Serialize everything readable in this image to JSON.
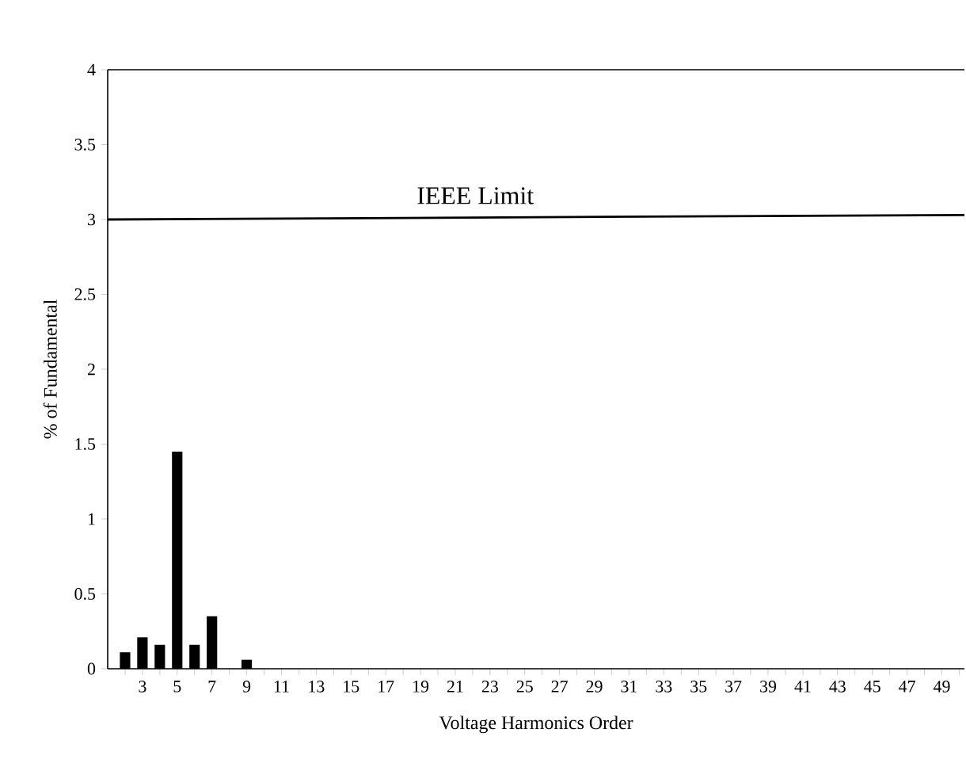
{
  "chart_data": {
    "type": "bar",
    "xlabel": "Voltage Harmonics Order",
    "ylabel": "%  of  Fundamental",
    "xlim": [
      1,
      50.3
    ],
    "ylim": [
      0,
      4
    ],
    "xticks": [
      {
        "value": 2,
        "label": null
      },
      3,
      {
        "value": 4,
        "label": null
      },
      5,
      {
        "value": 6,
        "label": null
      },
      7,
      {
        "value": 8,
        "label": null
      },
      9,
      {
        "value": 10,
        "label": null
      },
      11,
      {
        "value": 12,
        "label": null
      },
      13,
      {
        "value": 14,
        "label": null
      },
      15,
      {
        "value": 16,
        "label": null
      },
      17,
      {
        "value": 18,
        "label": null
      },
      19,
      {
        "value": 20,
        "label": null
      },
      21,
      {
        "value": 22,
        "label": null
      },
      23,
      {
        "value": 24,
        "label": null
      },
      25,
      {
        "value": 26,
        "label": null
      },
      27,
      {
        "value": 28,
        "label": null
      },
      29,
      {
        "value": 30,
        "label": null
      },
      31,
      {
        "value": 32,
        "label": null
      },
      33,
      {
        "value": 34,
        "label": null
      },
      35,
      {
        "value": 36,
        "label": null
      },
      37,
      {
        "value": 38,
        "label": null
      },
      39,
      {
        "value": 40,
        "label": null
      },
      41,
      {
        "value": 42,
        "label": null
      },
      43,
      {
        "value": 44,
        "label": null
      },
      45,
      {
        "value": 46,
        "label": null
      },
      47,
      {
        "value": 48,
        "label": null
      },
      49,
      {
        "value": 50,
        "label": null
      }
    ],
    "yticks": [
      0,
      0.5,
      1,
      1.5,
      2,
      2.5,
      3,
      3.5,
      4
    ],
    "grid": false,
    "series": [
      {
        "color": "#000000",
        "x": [
          2,
          3,
          4,
          5,
          6,
          7,
          8,
          9
        ],
        "values": [
          0.11,
          0.21,
          0.16,
          1.45,
          0.16,
          0.35,
          0,
          0.06
        ]
      },
      {
        "type": "line",
        "name": "IEEE Limit",
        "color": "#000000",
        "x": [
          1,
          50.3
        ],
        "values": [
          3.0,
          3.03
        ]
      }
    ]
  }
}
